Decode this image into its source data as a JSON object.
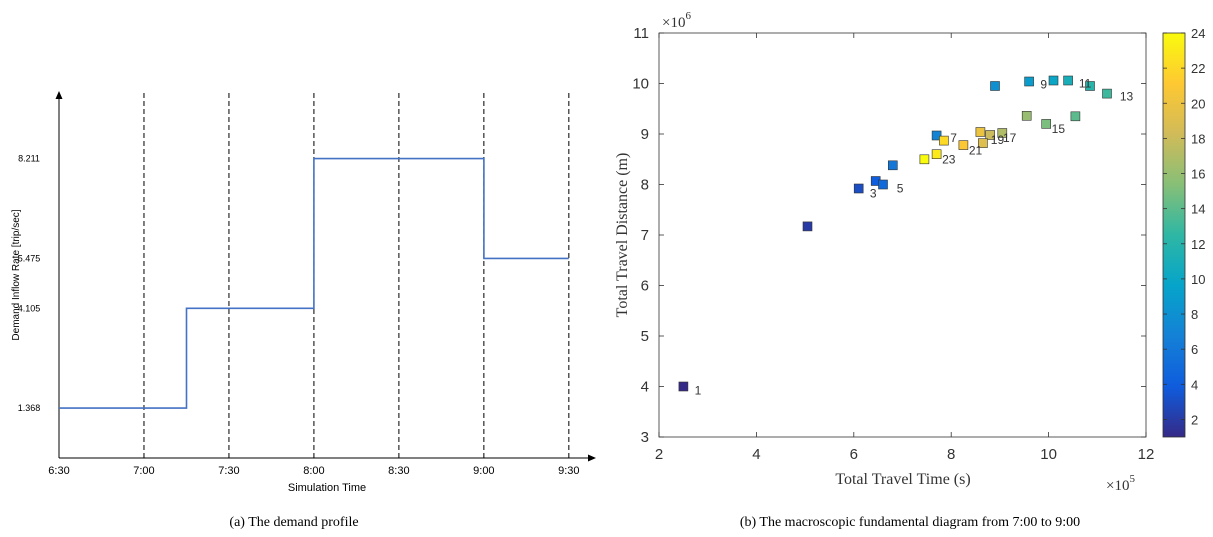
{
  "chart_data": [
    {
      "type": "line",
      "step": true,
      "caption": "(a)  The demand profile",
      "xlabel": "Simulation Time",
      "ylabel": "Demand Inflow Rate [trip/sec]",
      "xtick_labels": [
        "6:30",
        "7:00",
        "7:30",
        "8:00",
        "8:30",
        "9:00",
        "9:30"
      ],
      "ytick_values": [
        1.368,
        4.105,
        5.475,
        8.211
      ],
      "ytick_labels": [
        "1.368",
        "4.105",
        "5.475",
        "8.211"
      ],
      "vertical_dashed_lines_at": [
        "7:00",
        "7:30",
        "8:00",
        "8:30",
        "9:00",
        "9:30"
      ],
      "xlim_minutes": [
        0,
        185
      ],
      "ylim": [
        0,
        9.9
      ],
      "color": "#4472c4",
      "series": [
        {
          "x_minutes": [
            0,
            45,
            45,
            90,
            90,
            150,
            150,
            180
          ],
          "y": [
            1.368,
            1.368,
            4.105,
            4.105,
            8.211,
            8.211,
            5.475,
            5.475
          ]
        }
      ]
    },
    {
      "type": "scatter",
      "caption": "(b)  The macroscopic fundamental diagram from 7:00 to 9:00",
      "xlabel": "Total Travel Time (s)",
      "ylabel": "Total Travel Distance (m)",
      "x_multiplier_label": "×10",
      "x_multiplier_exp": "5",
      "y_multiplier_label": "×10",
      "y_multiplier_exp": "6",
      "xlim": [
        2,
        12
      ],
      "ylim": [
        3,
        11
      ],
      "xticks": [
        2,
        4,
        6,
        8,
        10,
        12
      ],
      "yticks": [
        3,
        4,
        5,
        6,
        7,
        8,
        9,
        10,
        11
      ],
      "colorbar": {
        "range": [
          1,
          24
        ],
        "ticks": [
          2,
          4,
          6,
          8,
          10,
          12,
          14,
          16,
          18,
          20,
          22,
          24
        ],
        "colormap": "parula"
      },
      "points": [
        {
          "x": 2.5,
          "y": 4.0,
          "c": 1
        },
        {
          "x": 5.05,
          "y": 7.17,
          "c": 2
        },
        {
          "x": 6.1,
          "y": 7.92,
          "c": 3
        },
        {
          "x": 6.45,
          "y": 8.07,
          "c": 4
        },
        {
          "x": 6.6,
          "y": 8.0,
          "c": 5
        },
        {
          "x": 6.8,
          "y": 8.38,
          "c": 6
        },
        {
          "x": 7.7,
          "y": 8.97,
          "c": 7
        },
        {
          "x": 8.9,
          "y": 9.95,
          "c": 8
        },
        {
          "x": 9.6,
          "y": 10.04,
          "c": 9
        },
        {
          "x": 10.1,
          "y": 10.06,
          "c": 10
        },
        {
          "x": 10.4,
          "y": 10.06,
          "c": 11
        },
        {
          "x": 10.85,
          "y": 9.95,
          "c": 12
        },
        {
          "x": 11.2,
          "y": 9.8,
          "c": 13
        },
        {
          "x": 10.55,
          "y": 9.35,
          "c": 14
        },
        {
          "x": 9.95,
          "y": 9.2,
          "c": 15
        },
        {
          "x": 9.55,
          "y": 9.36,
          "c": 16
        },
        {
          "x": 9.05,
          "y": 9.02,
          "c": 17
        },
        {
          "x": 8.8,
          "y": 8.98,
          "c": 18
        },
        {
          "x": 8.65,
          "y": 8.82,
          "c": 19
        },
        {
          "x": 8.6,
          "y": 9.04,
          "c": 20
        },
        {
          "x": 8.25,
          "y": 8.78,
          "c": 21
        },
        {
          "x": 7.85,
          "y": 8.87,
          "c": 22
        },
        {
          "x": 7.7,
          "y": 8.6,
          "c": 23
        },
        {
          "x": 7.45,
          "y": 8.5,
          "c": 24
        }
      ],
      "point_labels": [
        {
          "text": "1",
          "x": 2.8,
          "y": 3.92
        },
        {
          "text": "3",
          "x": 6.4,
          "y": 7.82
        },
        {
          "text": "5",
          "x": 6.95,
          "y": 7.92
        },
        {
          "text": "7",
          "x": 8.05,
          "y": 8.92
        },
        {
          "text": "9",
          "x": 9.9,
          "y": 9.98
        },
        {
          "text": "11",
          "x": 10.75,
          "y": 10.0
        },
        {
          "text": "13",
          "x": 11.6,
          "y": 9.74
        },
        {
          "text": "15",
          "x": 10.2,
          "y": 9.1
        },
        {
          "text": "17",
          "x": 9.2,
          "y": 8.92
        },
        {
          "text": "19",
          "x": 8.95,
          "y": 8.88
        },
        {
          "text": "21",
          "x": 8.5,
          "y": 8.67
        },
        {
          "text": "23",
          "x": 7.95,
          "y": 8.5
        }
      ]
    }
  ]
}
